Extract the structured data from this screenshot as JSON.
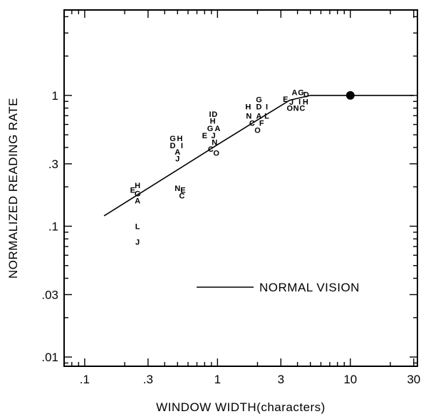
{
  "chart_data": {
    "type": "scatter",
    "title": "",
    "xlabel": "WINDOW WIDTH(characters)",
    "ylabel": "NORMALIZED READING RATE",
    "xscale": "log",
    "yscale": "log",
    "xlim": [
      0.07,
      32
    ],
    "ylim": [
      0.0085,
      4.5
    ],
    "x_ticks": [
      0.1,
      0.3,
      1,
      3,
      10,
      30
    ],
    "x_tick_labels": [
      ".1",
      ".3",
      "1",
      "3",
      "10",
      "30"
    ],
    "y_ticks": [
      0.01,
      0.03,
      0.1,
      0.3,
      1
    ],
    "y_tick_labels": [
      ".01",
      ".03",
      ".1",
      ".3",
      "1"
    ],
    "grid": false,
    "legend": {
      "label": "NORMAL VISION",
      "position": "center-right"
    },
    "series": [
      {
        "name": "NORMAL VISION",
        "type": "line",
        "x": [
          0.14,
          0.5,
          1,
          2,
          3.5,
          5,
          10,
          30
        ],
        "y": [
          0.12,
          0.27,
          0.42,
          0.65,
          0.92,
          1.0,
          1.0,
          1.0
        ]
      }
    ],
    "marker": {
      "x": 10,
      "y": 1.0
    },
    "points": [
      {
        "label": "E",
        "x": 0.23,
        "y": 0.19
      },
      {
        "label": "H",
        "x": 0.25,
        "y": 0.205
      },
      {
        "label": "G",
        "x": 0.25,
        "y": 0.178
      },
      {
        "label": "A",
        "x": 0.25,
        "y": 0.157
      },
      {
        "label": "L",
        "x": 0.25,
        "y": 0.1
      },
      {
        "label": "J",
        "x": 0.25,
        "y": 0.076
      },
      {
        "label": "G",
        "x": 0.46,
        "y": 0.47
      },
      {
        "label": "H",
        "x": 0.52,
        "y": 0.47
      },
      {
        "label": "D",
        "x": 0.46,
        "y": 0.415
      },
      {
        "label": "I",
        "x": 0.54,
        "y": 0.415
      },
      {
        "label": "A",
        "x": 0.5,
        "y": 0.37
      },
      {
        "label": "J",
        "x": 0.5,
        "y": 0.33
      },
      {
        "label": "N",
        "x": 0.5,
        "y": 0.195
      },
      {
        "label": "E",
        "x": 0.55,
        "y": 0.19
      },
      {
        "label": "C",
        "x": 0.54,
        "y": 0.171
      },
      {
        "label": "I",
        "x": 0.88,
        "y": 0.72
      },
      {
        "label": "D",
        "x": 0.95,
        "y": 0.72
      },
      {
        "label": "H",
        "x": 0.92,
        "y": 0.64
      },
      {
        "label": "G",
        "x": 0.88,
        "y": 0.56
      },
      {
        "label": "A",
        "x": 1.0,
        "y": 0.56
      },
      {
        "label": "E",
        "x": 0.8,
        "y": 0.495
      },
      {
        "label": "J",
        "x": 0.93,
        "y": 0.495
      },
      {
        "label": "N",
        "x": 0.95,
        "y": 0.44
      },
      {
        "label": "C",
        "x": 0.89,
        "y": 0.39
      },
      {
        "label": "O",
        "x": 0.98,
        "y": 0.365
      },
      {
        "label": "G",
        "x": 2.05,
        "y": 0.93
      },
      {
        "label": "H",
        "x": 1.7,
        "y": 0.82
      },
      {
        "label": "D",
        "x": 2.05,
        "y": 0.82
      },
      {
        "label": "I",
        "x": 2.35,
        "y": 0.82
      },
      {
        "label": "N",
        "x": 1.72,
        "y": 0.7
      },
      {
        "label": "A",
        "x": 2.05,
        "y": 0.7
      },
      {
        "label": "L",
        "x": 2.35,
        "y": 0.7
      },
      {
        "label": "C",
        "x": 1.82,
        "y": 0.615
      },
      {
        "label": "F",
        "x": 2.15,
        "y": 0.615
      },
      {
        "label": "O",
        "x": 2.0,
        "y": 0.545
      },
      {
        "label": "A",
        "x": 3.8,
        "y": 1.06
      },
      {
        "label": "G",
        "x": 4.25,
        "y": 1.06
      },
      {
        "label": "D",
        "x": 4.65,
        "y": 1.02
      },
      {
        "label": "E",
        "x": 3.25,
        "y": 0.94
      },
      {
        "label": "J",
        "x": 3.6,
        "y": 0.89
      },
      {
        "label": "I",
        "x": 4.15,
        "y": 0.9
      },
      {
        "label": "H",
        "x": 4.6,
        "y": 0.9
      },
      {
        "label": "O",
        "x": 3.5,
        "y": 0.8
      },
      {
        "label": "N",
        "x": 3.9,
        "y": 0.8
      },
      {
        "label": "C",
        "x": 4.35,
        "y": 0.8
      }
    ]
  }
}
